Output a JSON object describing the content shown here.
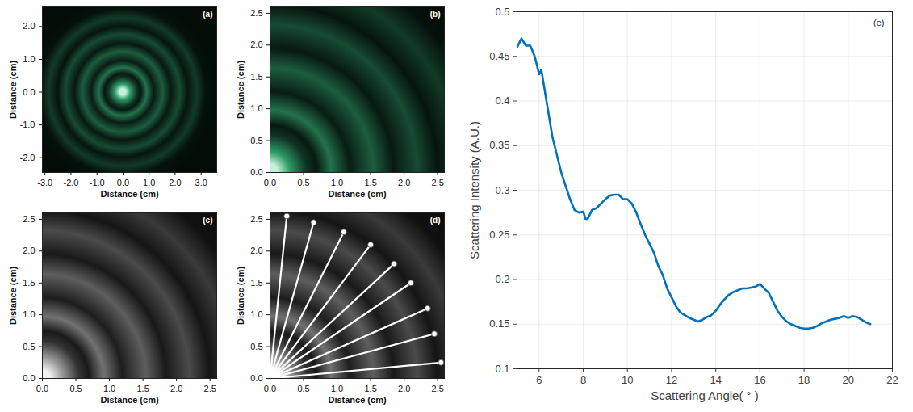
{
  "chart_data": [
    {
      "type": "image",
      "title": "(a)",
      "xlabel": "Distance (cm)",
      "ylabel": "Distance (cm)",
      "xlim": [
        -3.1,
        3.6
      ],
      "ylim": [
        -2.45,
        2.6
      ],
      "xticks": [
        {
          "value": -3,
          "label": "-3.0"
        },
        {
          "value": -2,
          "label": "-2.0"
        },
        {
          "value": -1,
          "label": "-1.0"
        },
        {
          "value": 0,
          "label": "0.0"
        },
        {
          "value": 1,
          "label": "1.0"
        },
        {
          "value": 2,
          "label": "2.0"
        },
        {
          "value": 3,
          "label": "3.0"
        }
      ],
      "yticks": [
        {
          "value": -2,
          "label": "-2.0"
        },
        {
          "value": -1,
          "label": "-1.0"
        },
        {
          "value": 0,
          "label": "0.0"
        },
        {
          "value": 1,
          "label": "1.0"
        },
        {
          "value": 2,
          "label": "2.0"
        }
      ],
      "color": "#3fcf8a",
      "grid": false
    },
    {
      "type": "image",
      "title": "(b)",
      "xlabel": "Distance (cm)",
      "ylabel": "Distance (cm)",
      "xlim": [
        0,
        2.6
      ],
      "ylim": [
        0,
        2.6
      ],
      "xticks": [
        {
          "value": 0,
          "label": "0.0"
        },
        {
          "value": 0.5,
          "label": "0.5"
        },
        {
          "value": 1,
          "label": "1.0"
        },
        {
          "value": 1.5,
          "label": "1.5"
        },
        {
          "value": 2,
          "label": "2.0"
        },
        {
          "value": 2.5,
          "label": "2.5"
        }
      ],
      "yticks": [
        {
          "value": 0,
          "label": "0.0"
        },
        {
          "value": 0.5,
          "label": "0.5"
        },
        {
          "value": 1,
          "label": "1.0"
        },
        {
          "value": 1.5,
          "label": "1.5"
        },
        {
          "value": 2,
          "label": "2.0"
        },
        {
          "value": 2.5,
          "label": "2.5"
        }
      ],
      "color": "#3fcf8a",
      "grid": false
    },
    {
      "type": "image",
      "title": "(c)",
      "xlabel": "Distance (cm)",
      "ylabel": "Distance (cm)",
      "xlim": [
        0,
        2.6
      ],
      "ylim": [
        0,
        2.6
      ],
      "xticks": [
        {
          "value": 0,
          "label": "0.0"
        },
        {
          "value": 0.5,
          "label": "0.5"
        },
        {
          "value": 1,
          "label": "1.0"
        },
        {
          "value": 1.5,
          "label": "1.5"
        },
        {
          "value": 2,
          "label": "2.0"
        },
        {
          "value": 2.5,
          "label": "2.5"
        }
      ],
      "yticks": [
        {
          "value": 0,
          "label": "0.0"
        },
        {
          "value": 0.5,
          "label": "0.5"
        },
        {
          "value": 1,
          "label": "1.0"
        },
        {
          "value": 1.5,
          "label": "1.5"
        },
        {
          "value": 2,
          "label": "2.0"
        },
        {
          "value": 2.5,
          "label": "2.5"
        }
      ],
      "color": "#d0d0d0",
      "grid": false
    },
    {
      "type": "image",
      "title": "(d)",
      "xlabel": "Distance (cm)",
      "ylabel": "Distance (cm)",
      "xlim": [
        0,
        2.6
      ],
      "ylim": [
        0,
        2.6
      ],
      "xticks": [
        {
          "value": 0,
          "label": "0.0"
        },
        {
          "value": 0.5,
          "label": "0.5"
        },
        {
          "value": 1,
          "label": "1.0"
        },
        {
          "value": 1.5,
          "label": "1.5"
        },
        {
          "value": 2,
          "label": "2.0"
        },
        {
          "value": 2.5,
          "label": "2.5"
        }
      ],
      "yticks": [
        {
          "value": 0,
          "label": "0.0"
        },
        {
          "value": 0.5,
          "label": "0.5"
        },
        {
          "value": 1,
          "label": "1.0"
        },
        {
          "value": 1.5,
          "label": "1.5"
        },
        {
          "value": 2,
          "label": "2.0"
        },
        {
          "value": 2.5,
          "label": "2.5"
        }
      ],
      "color": "#d0d0d0",
      "grid": false,
      "x": [
        0.25,
        0.65,
        1.1,
        1.5,
        1.85,
        2.1,
        2.35,
        2.45,
        2.55
      ],
      "values": [
        2.55,
        2.45,
        2.3,
        2.1,
        1.8,
        1.5,
        1.1,
        0.7,
        0.25
      ]
    },
    {
      "type": "line",
      "title": "(e)",
      "xlabel": "Scattering Angle( ° )",
      "ylabel": "Scattering Intensity (A.U.)",
      "xlim": [
        5,
        22
      ],
      "ylim": [
        0.1,
        0.5
      ],
      "xticks": [
        6,
        8,
        10,
        12,
        14,
        16,
        18,
        20,
        22
      ],
      "yticks": [
        0.1,
        0.15,
        0.2,
        0.25,
        0.3,
        0.35,
        0.4,
        0.45,
        0.5
      ],
      "color": "#0072bd",
      "grid": true,
      "x": [
        5,
        5.2,
        5.4,
        5.6,
        5.8,
        6,
        6.1,
        6.2,
        6.4,
        6.6,
        6.8,
        7,
        7.2,
        7.4,
        7.6,
        7.8,
        8,
        8.1,
        8.2,
        8.4,
        8.6,
        8.8,
        9,
        9.2,
        9.4,
        9.6,
        9.8,
        10,
        10.2,
        10.4,
        10.6,
        10.8,
        11,
        11.2,
        11.4,
        11.6,
        11.8,
        12,
        12.2,
        12.4,
        12.6,
        12.8,
        13,
        13.2,
        13.4,
        13.6,
        13.8,
        14,
        14.2,
        14.4,
        14.6,
        14.8,
        15,
        15.2,
        15.4,
        15.6,
        15.8,
        16,
        16.2,
        16.4,
        16.6,
        16.8,
        17,
        17.2,
        17.4,
        17.6,
        17.8,
        18,
        18.2,
        18.4,
        18.6,
        18.8,
        19,
        19.2,
        19.4,
        19.6,
        19.8,
        20,
        20.2,
        20.4,
        20.6,
        20.8,
        21
      ],
      "values": [
        0.46,
        0.47,
        0.462,
        0.462,
        0.45,
        0.43,
        0.435,
        0.42,
        0.39,
        0.36,
        0.34,
        0.32,
        0.305,
        0.29,
        0.278,
        0.275,
        0.276,
        0.268,
        0.268,
        0.278,
        0.28,
        0.285,
        0.29,
        0.294,
        0.295,
        0.295,
        0.29,
        0.29,
        0.285,
        0.275,
        0.262,
        0.25,
        0.24,
        0.23,
        0.215,
        0.205,
        0.19,
        0.18,
        0.17,
        0.163,
        0.16,
        0.157,
        0.155,
        0.153,
        0.155,
        0.158,
        0.16,
        0.165,
        0.172,
        0.178,
        0.183,
        0.186,
        0.188,
        0.19,
        0.19,
        0.191,
        0.192,
        0.195,
        0.19,
        0.185,
        0.175,
        0.165,
        0.158,
        0.153,
        0.15,
        0.148,
        0.146,
        0.145,
        0.145,
        0.146,
        0.148,
        0.151,
        0.153,
        0.155,
        0.156,
        0.157,
        0.159,
        0.157,
        0.159,
        0.158,
        0.155,
        0.152,
        0.15
      ]
    }
  ]
}
